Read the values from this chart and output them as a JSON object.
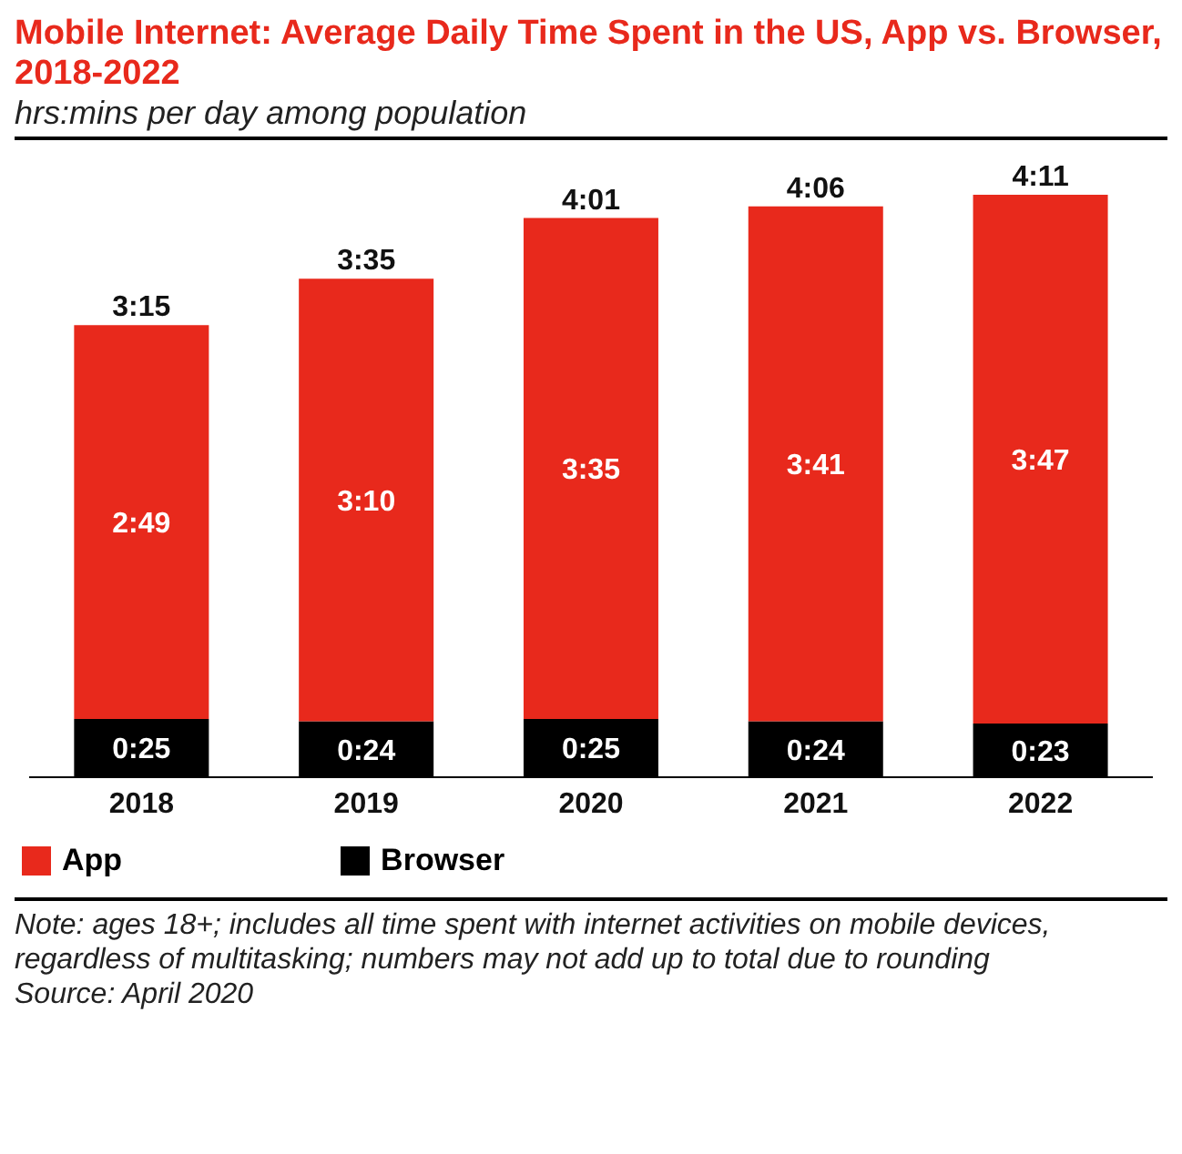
{
  "chart_data": {
    "type": "bar",
    "title": "Mobile Internet: Average Daily Time Spent in the US, App vs. Browser, 2018-2022",
    "subtitle": "hrs:mins per day among population",
    "categories": [
      "2018",
      "2019",
      "2020",
      "2021",
      "2022"
    ],
    "stacked": true,
    "legend": "bottom",
    "series": [
      {
        "name": "Browser",
        "color": "#000000",
        "values": [
          25,
          24,
          25,
          24,
          23
        ],
        "value_labels": [
          "0:25",
          "0:24",
          "0:25",
          "0:24",
          "0:23"
        ]
      },
      {
        "name": "App",
        "color": "#e8291c",
        "values": [
          169,
          190,
          215,
          221,
          227
        ],
        "value_labels": [
          "2:49",
          "3:10",
          "3:35",
          "3:41",
          "3:47"
        ]
      }
    ],
    "totals": [
      "3:15",
      "3:35",
      "4:01",
      "4:06",
      "4:11"
    ],
    "annotations": [
      "Note: ages 18+; includes all time spent with internet activities on mobile devices, regardless of multitasking; numbers may not add up to total due to rounding",
      "Source: April 2020"
    ]
  }
}
